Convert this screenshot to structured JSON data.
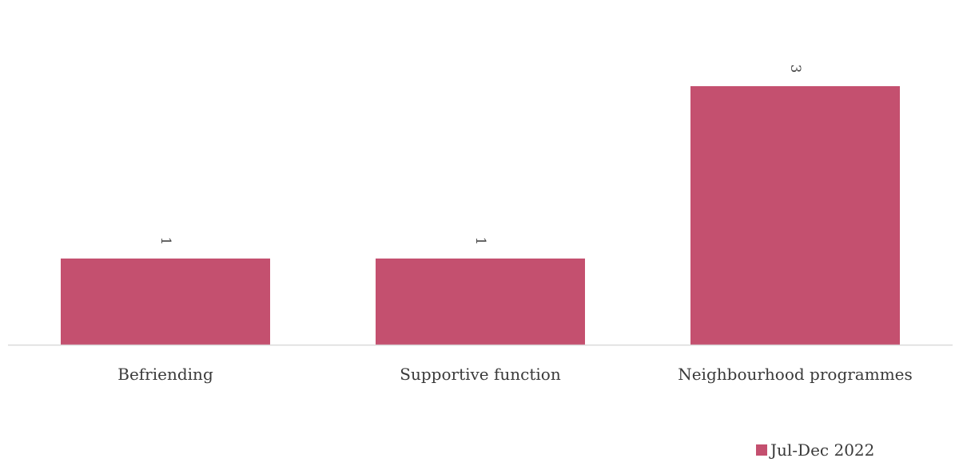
{
  "chart_data": {
    "type": "bar",
    "categories": [
      "Befriending",
      "Supportive function",
      "Neighbourhood programmes"
    ],
    "series": [
      {
        "name": "Jul-Dec 2022",
        "values": [
          1,
          1,
          3
        ],
        "color": "#c4506f"
      }
    ],
    "data_labels": [
      "1",
      "1",
      "3"
    ],
    "data_label_rotation": "90 degrees",
    "title": "",
    "xlabel": "",
    "ylabel": "",
    "ylim": [
      0,
      4
    ],
    "grid": false,
    "legend_position": "bottom-right",
    "axis_color": "#d9d9d9"
  }
}
